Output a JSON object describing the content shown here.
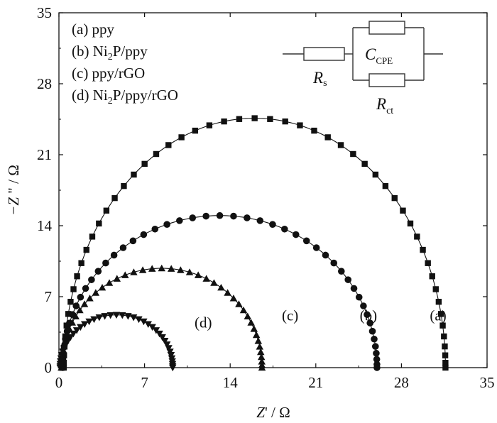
{
  "chart_data": {
    "type": "scatter",
    "title": "",
    "xlabel": {
      "main": "Z",
      "rest": "' / Ω"
    },
    "ylabel": {
      "main": "−Z",
      "rest": " \" / Ω"
    },
    "xlim": [
      0,
      35
    ],
    "ylim": [
      0,
      35
    ],
    "xticks": [
      0,
      7,
      14,
      21,
      28,
      35
    ],
    "yticks": [
      0,
      7,
      14,
      21,
      28,
      35
    ],
    "grid": false,
    "legend": {
      "position": "top-left",
      "entries": [
        {
          "label": "(a) ppy",
          "subscripts": []
        },
        {
          "label": "(b) Ni2P/ppy",
          "parts": [
            "(b) Ni",
            "2",
            "P/ppy"
          ]
        },
        {
          "label": "(c) ppy/rGO",
          "parts": [
            "(c) ppy/rGO"
          ]
        },
        {
          "label": "(d) Ni2P/ppy/rGO",
          "parts": [
            "(d) Ni",
            "2",
            "P/ppy/rGO"
          ]
        }
      ]
    },
    "series": [
      {
        "name": "(a)",
        "marker": "square",
        "x_start": 0.4,
        "x_end": 31.6,
        "y_peak": 24.6,
        "points": 52,
        "label_x": 31.0,
        "label_y": 5.2
      },
      {
        "name": "(b)",
        "marker": "circle",
        "x_start": 0.3,
        "x_end": 26.0,
        "y_peak": 15.0,
        "points": 48,
        "label_x": 25.3,
        "label_y": 5.2
      },
      {
        "name": "(c)",
        "marker": "triangle-up",
        "x_start": 0.2,
        "x_end": 16.6,
        "y_peak": 9.8,
        "points": 44,
        "label_x": 18.9,
        "label_y": 5.2
      },
      {
        "name": "(d)",
        "marker": "triangle-down",
        "x_start": 0.1,
        "x_end": 9.3,
        "y_peak": 5.2,
        "points": 40,
        "label_x": 11.8,
        "label_y": 4.5
      }
    ],
    "circuit": {
      "rs_main": "R",
      "rs_sub": "s",
      "c_main": "C",
      "c_sub": "CPE",
      "rct_main": "R",
      "rct_sub": "ct"
    }
  }
}
